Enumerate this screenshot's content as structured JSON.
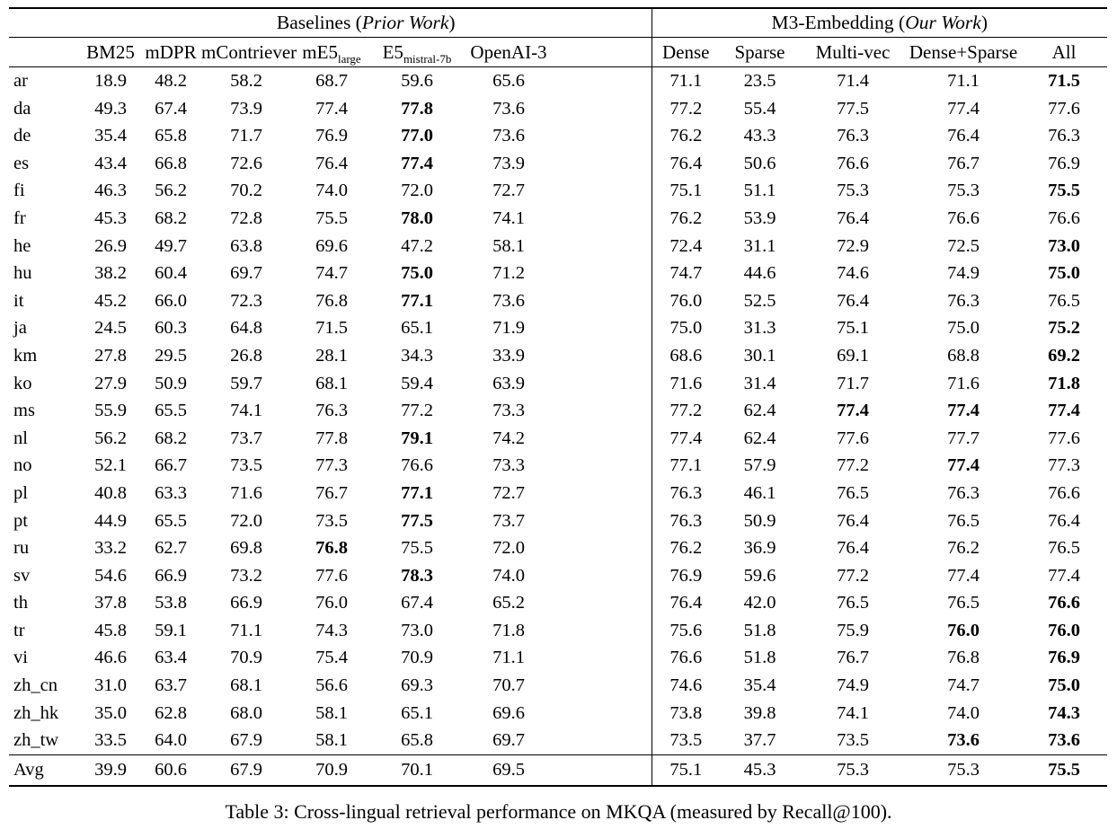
{
  "table": {
    "caption": "Table 3: Cross-lingual retrieval performance on MKQA (measured by Recall@100).",
    "groups": {
      "baselines": {
        "prefix": "Baselines (",
        "italic": "Prior Work",
        "suffix": ")"
      },
      "m3": {
        "prefix": "M3-Embedding (",
        "italic": "Our Work",
        "suffix": ")"
      }
    },
    "columns": [
      {
        "label": "BM25"
      },
      {
        "label": "mDPR"
      },
      {
        "label": "mContriever"
      },
      {
        "label": "mE5",
        "sub": "large"
      },
      {
        "label": "E5",
        "sub": "mistral-7b"
      },
      {
        "label": "OpenAI-3"
      },
      {
        "label": "Dense"
      },
      {
        "label": "Sparse"
      },
      {
        "label": "Multi-vec"
      },
      {
        "label": "Dense+Sparse"
      },
      {
        "label": "All"
      }
    ],
    "rows": [
      {
        "lang": "ar",
        "values": [
          "18.9",
          "48.2",
          "58.2",
          "68.7",
          "59.6",
          "65.6",
          "71.1",
          "23.5",
          "71.4",
          "71.1",
          "71.5"
        ],
        "bold": [
          10
        ]
      },
      {
        "lang": "da",
        "values": [
          "49.3",
          "67.4",
          "73.9",
          "77.4",
          "77.8",
          "73.6",
          "77.2",
          "55.4",
          "77.5",
          "77.4",
          "77.6"
        ],
        "bold": [
          4
        ]
      },
      {
        "lang": "de",
        "values": [
          "35.4",
          "65.8",
          "71.7",
          "76.9",
          "77.0",
          "73.6",
          "76.2",
          "43.3",
          "76.3",
          "76.4",
          "76.3"
        ],
        "bold": [
          4
        ]
      },
      {
        "lang": "es",
        "values": [
          "43.4",
          "66.8",
          "72.6",
          "76.4",
          "77.4",
          "73.9",
          "76.4",
          "50.6",
          "76.6",
          "76.7",
          "76.9"
        ],
        "bold": [
          4
        ]
      },
      {
        "lang": "fi",
        "values": [
          "46.3",
          "56.2",
          "70.2",
          "74.0",
          "72.0",
          "72.7",
          "75.1",
          "51.1",
          "75.3",
          "75.3",
          "75.5"
        ],
        "bold": [
          10
        ]
      },
      {
        "lang": "fr",
        "values": [
          "45.3",
          "68.2",
          "72.8",
          "75.5",
          "78.0",
          "74.1",
          "76.2",
          "53.9",
          "76.4",
          "76.6",
          "76.6"
        ],
        "bold": [
          4
        ]
      },
      {
        "lang": "he",
        "values": [
          "26.9",
          "49.7",
          "63.8",
          "69.6",
          "47.2",
          "58.1",
          "72.4",
          "31.1",
          "72.9",
          "72.5",
          "73.0"
        ],
        "bold": [
          10
        ]
      },
      {
        "lang": "hu",
        "values": [
          "38.2",
          "60.4",
          "69.7",
          "74.7",
          "75.0",
          "71.2",
          "74.7",
          "44.6",
          "74.6",
          "74.9",
          "75.0"
        ],
        "bold": [
          4,
          10
        ]
      },
      {
        "lang": "it",
        "values": [
          "45.2",
          "66.0",
          "72.3",
          "76.8",
          "77.1",
          "73.6",
          "76.0",
          "52.5",
          "76.4",
          "76.3",
          "76.5"
        ],
        "bold": [
          4
        ]
      },
      {
        "lang": "ja",
        "values": [
          "24.5",
          "60.3",
          "64.8",
          "71.5",
          "65.1",
          "71.9",
          "75.0",
          "31.3",
          "75.1",
          "75.0",
          "75.2"
        ],
        "bold": [
          10
        ]
      },
      {
        "lang": "km",
        "values": [
          "27.8",
          "29.5",
          "26.8",
          "28.1",
          "34.3",
          "33.9",
          "68.6",
          "30.1",
          "69.1",
          "68.8",
          "69.2"
        ],
        "bold": [
          10
        ]
      },
      {
        "lang": "ko",
        "values": [
          "27.9",
          "50.9",
          "59.7",
          "68.1",
          "59.4",
          "63.9",
          "71.6",
          "31.4",
          "71.7",
          "71.6",
          "71.8"
        ],
        "bold": [
          10
        ]
      },
      {
        "lang": "ms",
        "values": [
          "55.9",
          "65.5",
          "74.1",
          "76.3",
          "77.2",
          "73.3",
          "77.2",
          "62.4",
          "77.4",
          "77.4",
          "77.4"
        ],
        "bold": [
          8,
          9,
          10
        ]
      },
      {
        "lang": "nl",
        "values": [
          "56.2",
          "68.2",
          "73.7",
          "77.8",
          "79.1",
          "74.2",
          "77.4",
          "62.4",
          "77.6",
          "77.7",
          "77.6"
        ],
        "bold": [
          4
        ]
      },
      {
        "lang": "no",
        "values": [
          "52.1",
          "66.7",
          "73.5",
          "77.3",
          "76.6",
          "73.3",
          "77.1",
          "57.9",
          "77.2",
          "77.4",
          "77.3"
        ],
        "bold": [
          9
        ]
      },
      {
        "lang": "pl",
        "values": [
          "40.8",
          "63.3",
          "71.6",
          "76.7",
          "77.1",
          "72.7",
          "76.3",
          "46.1",
          "76.5",
          "76.3",
          "76.6"
        ],
        "bold": [
          4
        ]
      },
      {
        "lang": "pt",
        "values": [
          "44.9",
          "65.5",
          "72.0",
          "73.5",
          "77.5",
          "73.7",
          "76.3",
          "50.9",
          "76.4",
          "76.5",
          "76.4"
        ],
        "bold": [
          4
        ]
      },
      {
        "lang": "ru",
        "values": [
          "33.2",
          "62.7",
          "69.8",
          "76.8",
          "75.5",
          "72.0",
          "76.2",
          "36.9",
          "76.4",
          "76.2",
          "76.5"
        ],
        "bold": [
          3
        ]
      },
      {
        "lang": "sv",
        "values": [
          "54.6",
          "66.9",
          "73.2",
          "77.6",
          "78.3",
          "74.0",
          "76.9",
          "59.6",
          "77.2",
          "77.4",
          "77.4"
        ],
        "bold": [
          4
        ]
      },
      {
        "lang": "th",
        "values": [
          "37.8",
          "53.8",
          "66.9",
          "76.0",
          "67.4",
          "65.2",
          "76.4",
          "42.0",
          "76.5",
          "76.5",
          "76.6"
        ],
        "bold": [
          10
        ]
      },
      {
        "lang": "tr",
        "values": [
          "45.8",
          "59.1",
          "71.1",
          "74.3",
          "73.0",
          "71.8",
          "75.6",
          "51.8",
          "75.9",
          "76.0",
          "76.0"
        ],
        "bold": [
          9,
          10
        ]
      },
      {
        "lang": "vi",
        "values": [
          "46.6",
          "63.4",
          "70.9",
          "75.4",
          "70.9",
          "71.1",
          "76.6",
          "51.8",
          "76.7",
          "76.8",
          "76.9"
        ],
        "bold": [
          10
        ]
      },
      {
        "lang": "zh_cn",
        "values": [
          "31.0",
          "63.7",
          "68.1",
          "56.6",
          "69.3",
          "70.7",
          "74.6",
          "35.4",
          "74.9",
          "74.7",
          "75.0"
        ],
        "bold": [
          10
        ]
      },
      {
        "lang": "zh_hk",
        "values": [
          "35.0",
          "62.8",
          "68.0",
          "58.1",
          "65.1",
          "69.6",
          "73.8",
          "39.8",
          "74.1",
          "74.0",
          "74.3"
        ],
        "bold": [
          10
        ]
      },
      {
        "lang": "zh_tw",
        "values": [
          "33.5",
          "64.0",
          "67.9",
          "58.1",
          "65.8",
          "69.7",
          "73.5",
          "37.7",
          "73.5",
          "73.6",
          "73.6"
        ],
        "bold": [
          9,
          10
        ]
      }
    ],
    "avg": {
      "lang": "Avg",
      "values": [
        "39.9",
        "60.6",
        "67.9",
        "70.9",
        "70.1",
        "69.5",
        "75.1",
        "45.3",
        "75.3",
        "75.3",
        "75.5"
      ],
      "bold": [
        10
      ]
    }
  }
}
